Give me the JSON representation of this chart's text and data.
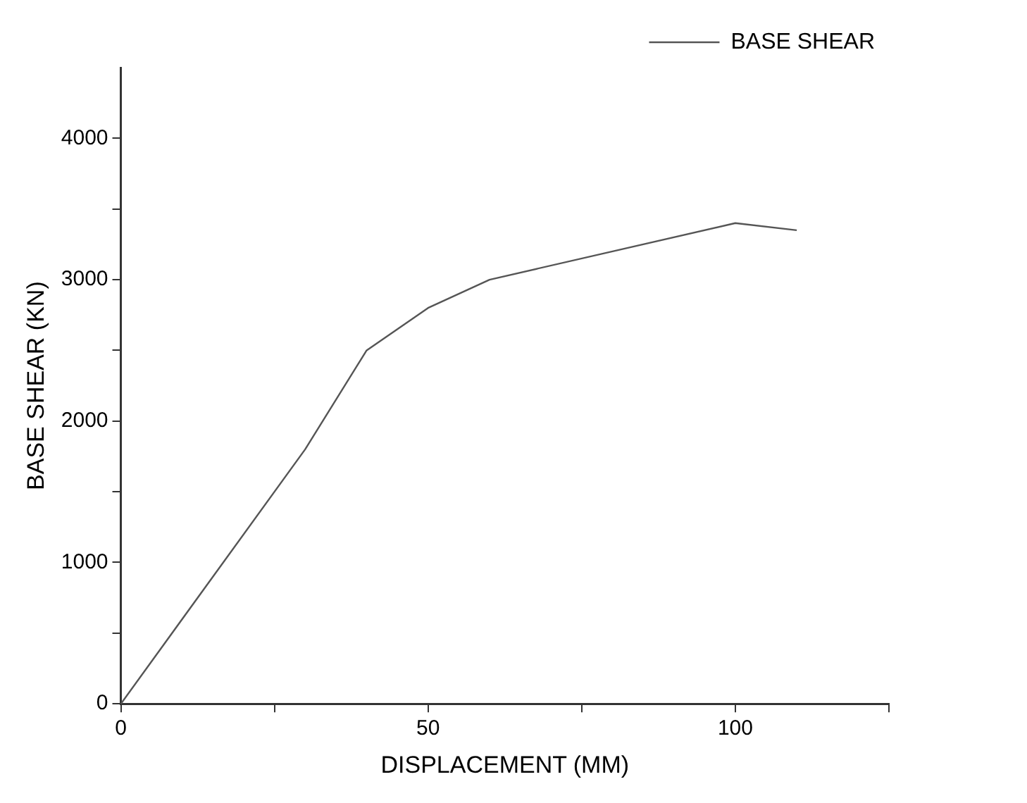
{
  "chart_data": {
    "type": "line",
    "xlabel": "DISPLACEMENT (MM)",
    "ylabel": "BASE SHEAR (KN)",
    "x": [
      0,
      30,
      40,
      50,
      60,
      100,
      110
    ],
    "series": [
      {
        "name": "BASE SHEAR",
        "color": "#555555",
        "values": [
          0,
          1800,
          2500,
          2800,
          3000,
          3400,
          3350
        ]
      }
    ],
    "xlim": [
      0,
      125
    ],
    "ylim": [
      0,
      4500
    ],
    "xticks": [
      0,
      {
        "value": 25,
        "label": null
      },
      50,
      {
        "value": 75,
        "label": null
      },
      100,
      {
        "value": 125,
        "label": null
      }
    ],
    "yticks": [
      0,
      {
        "value": 500,
        "label": null
      },
      1000,
      {
        "value": 1500,
        "label": null
      },
      2000,
      {
        "value": 2500,
        "label": null
      },
      3000,
      {
        "value": 3500,
        "label": null
      },
      4000
    ],
    "grid": false,
    "legend": "top right",
    "marker": "none",
    "line_style": "solid"
  }
}
